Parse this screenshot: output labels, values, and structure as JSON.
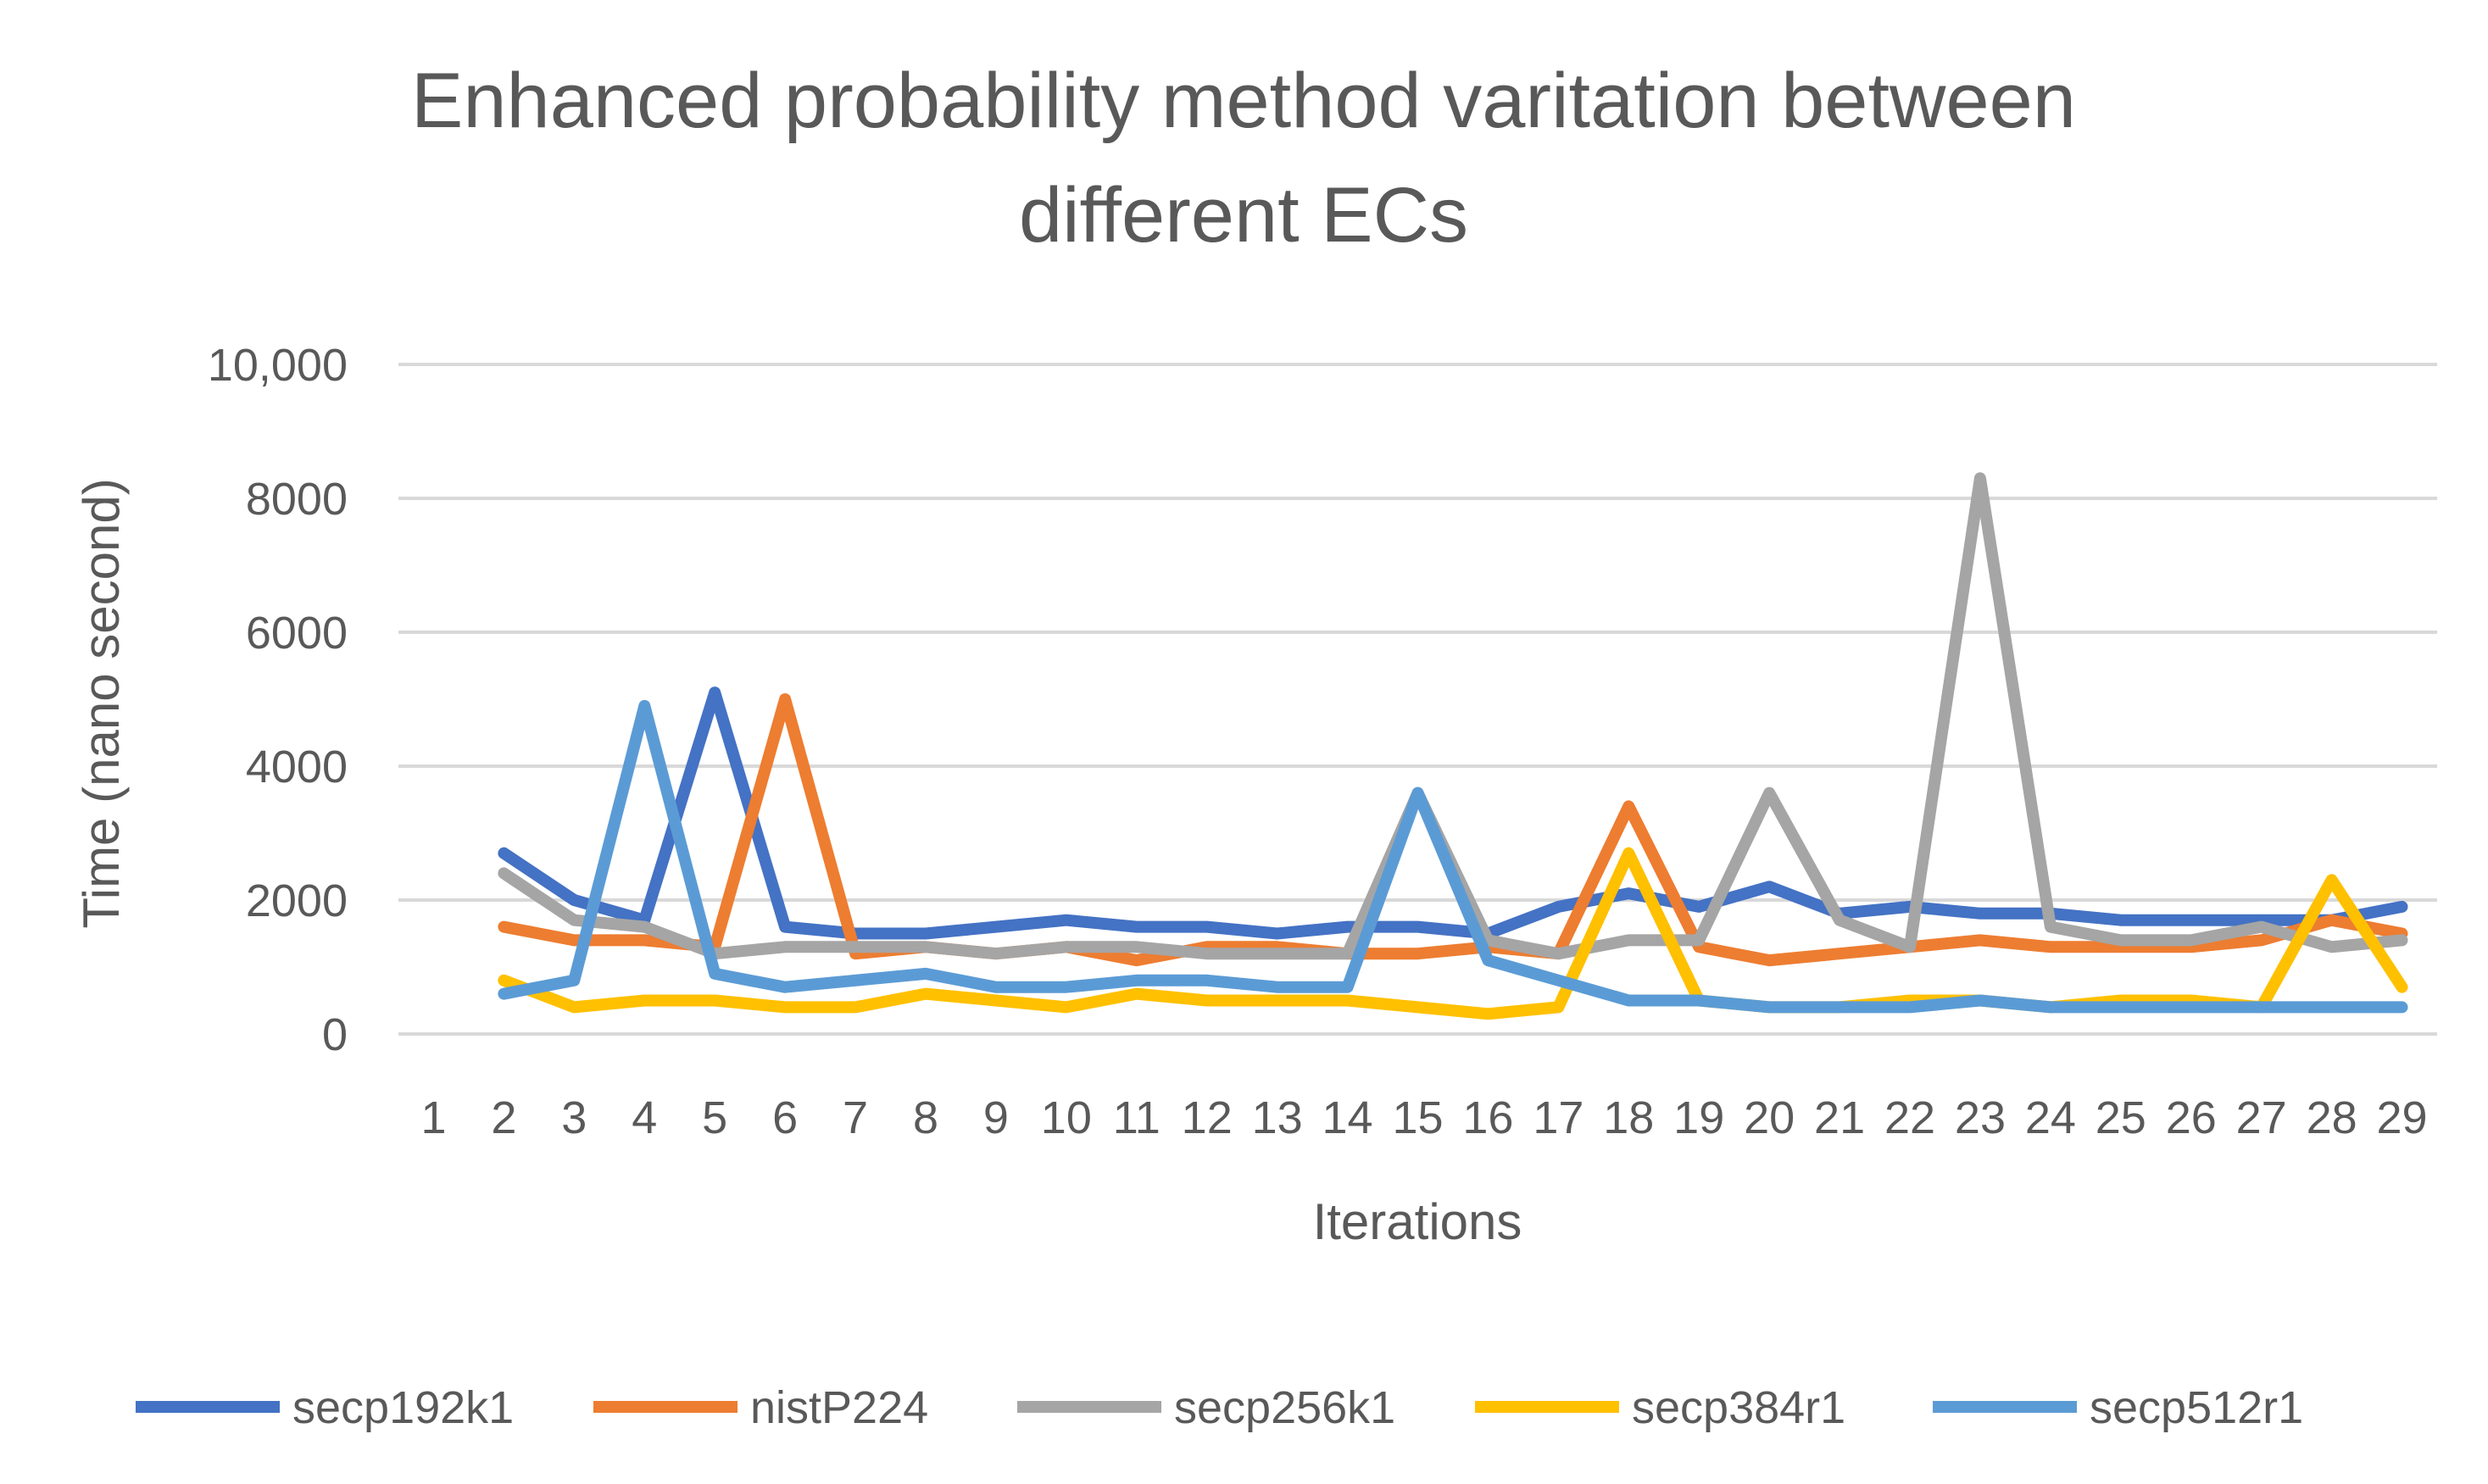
{
  "chart_data": {
    "type": "line",
    "title_lines": [
      "Enhanced probability method varitation between",
      "different ECs"
    ],
    "xlabel": "Iterations",
    "ylabel": "Time (nano second)",
    "ylim": [
      0,
      10000
    ],
    "yticks": [
      0,
      2000,
      4000,
      6000,
      8000,
      10000
    ],
    "ytick_labels": [
      "0",
      "2000",
      "4000",
      "6000",
      "8000",
      "10,000"
    ],
    "grid": true,
    "legend_position": "bottom",
    "categories": [
      "1",
      "2",
      "3",
      "4",
      "5",
      "6",
      "7",
      "8",
      "9",
      "10",
      "11",
      "12",
      "13",
      "14",
      "15",
      "16",
      "17",
      "18",
      "19",
      "20",
      "21",
      "22",
      "23",
      "24",
      "25",
      "26",
      "27",
      "28",
      "29"
    ],
    "series": [
      {
        "name": "secp192k1",
        "color": "#4472c4",
        "values": [
          null,
          2700,
          2000,
          1700,
          5100,
          1600,
          1500,
          1500,
          1600,
          1700,
          1600,
          1600,
          1500,
          1600,
          1600,
          1500,
          1900,
          2100,
          1900,
          2200,
          1800,
          1900,
          1800,
          1800,
          1700,
          1700,
          1700,
          1700,
          1900
        ]
      },
      {
        "name": "nistP224",
        "color": "#ed7d31",
        "values": [
          null,
          1600,
          1400,
          1400,
          1300,
          5000,
          1200,
          1300,
          1200,
          1300,
          1100,
          1300,
          1300,
          1200,
          1200,
          1300,
          1200,
          3400,
          1300,
          1100,
          1200,
          1300,
          1400,
          1300,
          1300,
          1300,
          1400,
          1700,
          1500
        ]
      },
      {
        "name": "secp256k1",
        "color": "#a5a5a5",
        "values": [
          null,
          2400,
          1700,
          1600,
          1200,
          1300,
          1300,
          1300,
          1200,
          1300,
          1300,
          1200,
          1200,
          1200,
          3600,
          1400,
          1200,
          1400,
          1400,
          3600,
          1700,
          1300,
          8300,
          1600,
          1400,
          1400,
          1600,
          1300,
          1400
        ]
      },
      {
        "name": "secp384r1",
        "color": "#ffc000",
        "values": [
          null,
          800,
          400,
          500,
          500,
          400,
          400,
          600,
          500,
          400,
          600,
          500,
          500,
          500,
          400,
          300,
          400,
          2700,
          500,
          400,
          400,
          500,
          500,
          400,
          500,
          500,
          400,
          2300,
          700
        ]
      },
      {
        "name": "secp512r1",
        "color": "#5b9bd5",
        "values": [
          null,
          600,
          800,
          4900,
          900,
          700,
          800,
          900,
          700,
          700,
          800,
          800,
          700,
          700,
          3600,
          1100,
          800,
          500,
          500,
          400,
          400,
          400,
          500,
          400,
          400,
          400,
          400,
          400,
          400
        ]
      }
    ]
  }
}
